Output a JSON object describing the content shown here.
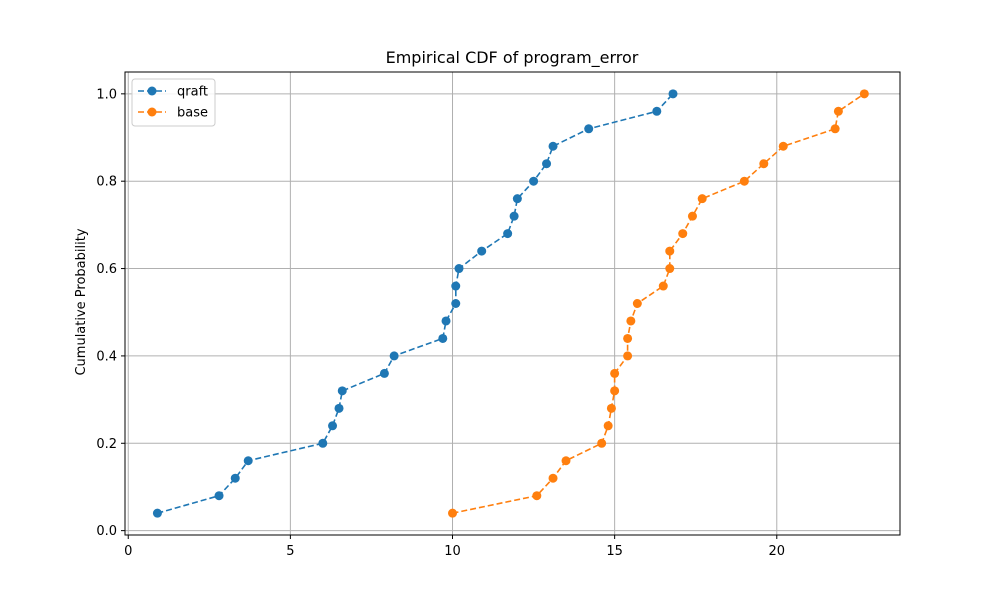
{
  "chart_data": {
    "type": "line",
    "title": "Empirical CDF of program_error",
    "xlabel": "",
    "ylabel": "Cumulative Probability",
    "xlim": [
      -0.1,
      23.8
    ],
    "ylim": [
      -0.01,
      1.05
    ],
    "xticks": [
      0,
      5,
      10,
      15,
      20
    ],
    "yticks": [
      0.0,
      0.2,
      0.4,
      0.6,
      0.8,
      1.0
    ],
    "xtick_labels": [
      "0",
      "5",
      "10",
      "15",
      "20"
    ],
    "ytick_labels": [
      "0.0",
      "0.2",
      "0.4",
      "0.6",
      "0.8",
      "1.0"
    ],
    "grid": true,
    "legend_position": "top-left",
    "series": [
      {
        "name": "qraft",
        "color": "#1f77b4",
        "x": [
          0.9,
          2.8,
          3.3,
          3.7,
          6.0,
          6.3,
          6.5,
          6.6,
          7.9,
          8.2,
          9.7,
          9.8,
          10.1,
          10.1,
          10.2,
          10.9,
          11.7,
          11.9,
          12.0,
          12.5,
          12.9,
          13.1,
          14.2,
          16.3,
          16.8
        ],
        "y": [
          0.04,
          0.08,
          0.12,
          0.16,
          0.2,
          0.24,
          0.28,
          0.32,
          0.36,
          0.4,
          0.44,
          0.48,
          0.52,
          0.56,
          0.6,
          0.64,
          0.68,
          0.72,
          0.76,
          0.8,
          0.84,
          0.88,
          0.92,
          0.96,
          1.0
        ]
      },
      {
        "name": "base",
        "color": "#ff7f0e",
        "x": [
          10.0,
          12.6,
          13.1,
          13.5,
          14.6,
          14.8,
          14.9,
          15.0,
          15.0,
          15.4,
          15.4,
          15.5,
          15.7,
          16.5,
          16.7,
          16.7,
          17.1,
          17.4,
          17.7,
          19.0,
          19.6,
          20.2,
          21.8,
          21.9,
          22.7
        ],
        "y": [
          0.04,
          0.08,
          0.12,
          0.16,
          0.2,
          0.24,
          0.28,
          0.32,
          0.36,
          0.4,
          0.44,
          0.48,
          0.52,
          0.56,
          0.6,
          0.64,
          0.68,
          0.72,
          0.76,
          0.8,
          0.84,
          0.88,
          0.92,
          0.96,
          1.0
        ]
      }
    ]
  }
}
